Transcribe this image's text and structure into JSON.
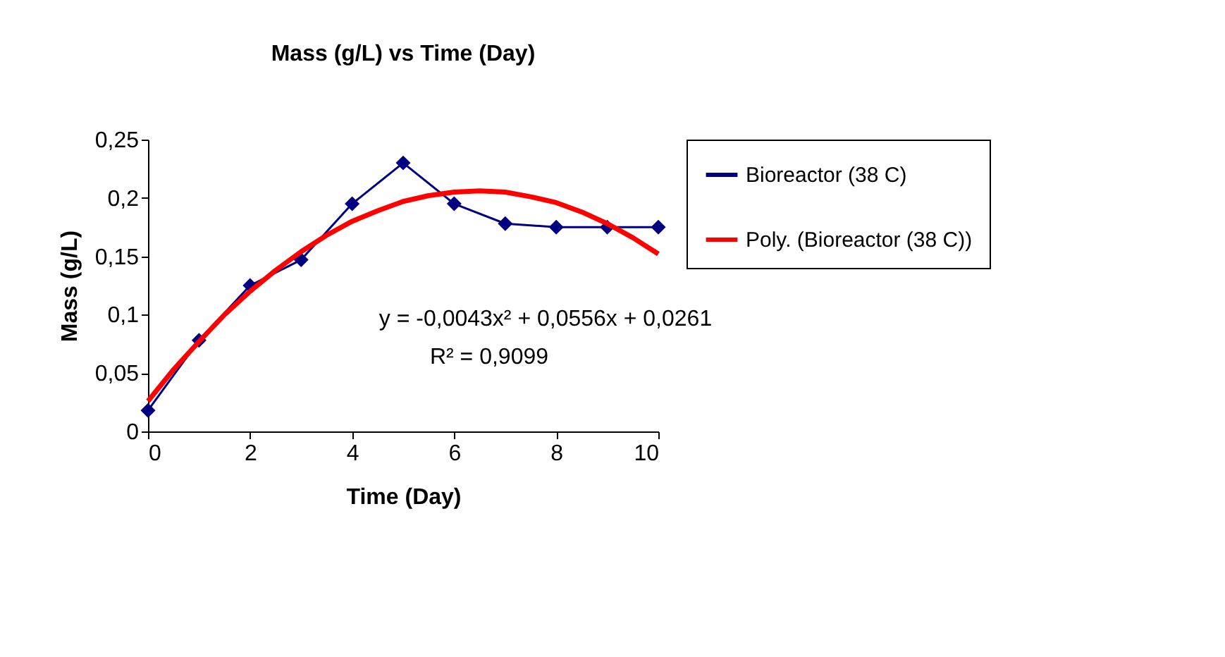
{
  "chart_data": {
    "type": "line",
    "title": "Mass (g/L) vs Time (Day)",
    "xlabel": "Time (Day)",
    "ylabel": "Mass (g/L)",
    "x": [
      0,
      1,
      2,
      3,
      4,
      5,
      6,
      7,
      8,
      9,
      10
    ],
    "series": [
      {
        "name": "Bioreactor (38 C)",
        "color": "#000080",
        "marker": "diamond",
        "values": [
          0.018,
          0.078,
          0.125,
          0.147,
          0.195,
          0.23,
          0.195,
          0.178,
          0.175,
          0.175,
          0.175
        ]
      },
      {
        "name": "Poly. (Bioreactor (38 C))",
        "color": "#ff0000",
        "marker": "none",
        "x": [
          0,
          0.5,
          1,
          1.5,
          2,
          2.5,
          3,
          3.5,
          4,
          4.5,
          5,
          5.5,
          6,
          6.5,
          7,
          7.5,
          8,
          8.5,
          9,
          9.5,
          10
        ],
        "values": [
          0.026,
          0.053,
          0.077,
          0.1,
          0.12,
          0.138,
          0.154,
          0.168,
          0.18,
          0.189,
          0.197,
          0.202,
          0.205,
          0.206,
          0.205,
          0.201,
          0.196,
          0.188,
          0.178,
          0.166,
          0.152
        ]
      }
    ],
    "annotations": [
      "y = -0,0043x² + 0,0556x + 0,0261",
      "R² = 0,9099"
    ],
    "xlim": [
      0,
      10
    ],
    "xticks": [
      0,
      2,
      4,
      6,
      8,
      10
    ],
    "ylim": [
      0,
      0.25
    ],
    "yticks": [
      0,
      {
        "value": 0.05,
        "label": "0,05"
      },
      {
        "value": 0.1,
        "label": "0,1"
      },
      {
        "value": 0.15,
        "label": "0,15"
      },
      {
        "value": 0.2,
        "label": "0,2"
      },
      {
        "value": 0.25,
        "label": "0,25"
      }
    ],
    "grid": false,
    "legend": "right"
  }
}
